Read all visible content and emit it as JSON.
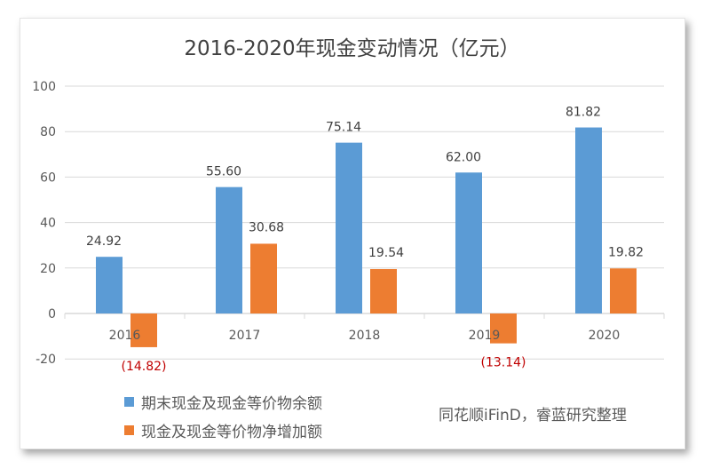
{
  "chart_data": {
    "type": "bar",
    "title": "2016-2020年现金变动情况（亿元）",
    "categories": [
      "2016",
      "2017",
      "2018",
      "2019",
      "2020"
    ],
    "series": [
      {
        "name": "期末现金及现金等价物余额",
        "values": [
          24.92,
          55.6,
          75.14,
          62.0,
          81.82
        ],
        "labels": [
          "24.92",
          "55.60",
          "75.14",
          "62.00",
          "81.82"
        ],
        "color": "#5b9bd5"
      },
      {
        "name": "现金及现金等价物净增加额",
        "values": [
          -14.82,
          30.68,
          19.54,
          -13.14,
          19.82
        ],
        "labels": [
          "(14.82)",
          "30.68",
          "19.54",
          "(13.14)",
          "19.82"
        ],
        "color": "#ed7d31"
      }
    ],
    "ylim": [
      -20,
      100
    ],
    "yticks": [
      "-20",
      "0",
      "20",
      "40",
      "60",
      "80",
      "100"
    ],
    "grid": true,
    "legend": "bottom-left",
    "negative_label_color": "#c00000"
  },
  "source": "同花顺iFinD，睿蓝研究整理"
}
